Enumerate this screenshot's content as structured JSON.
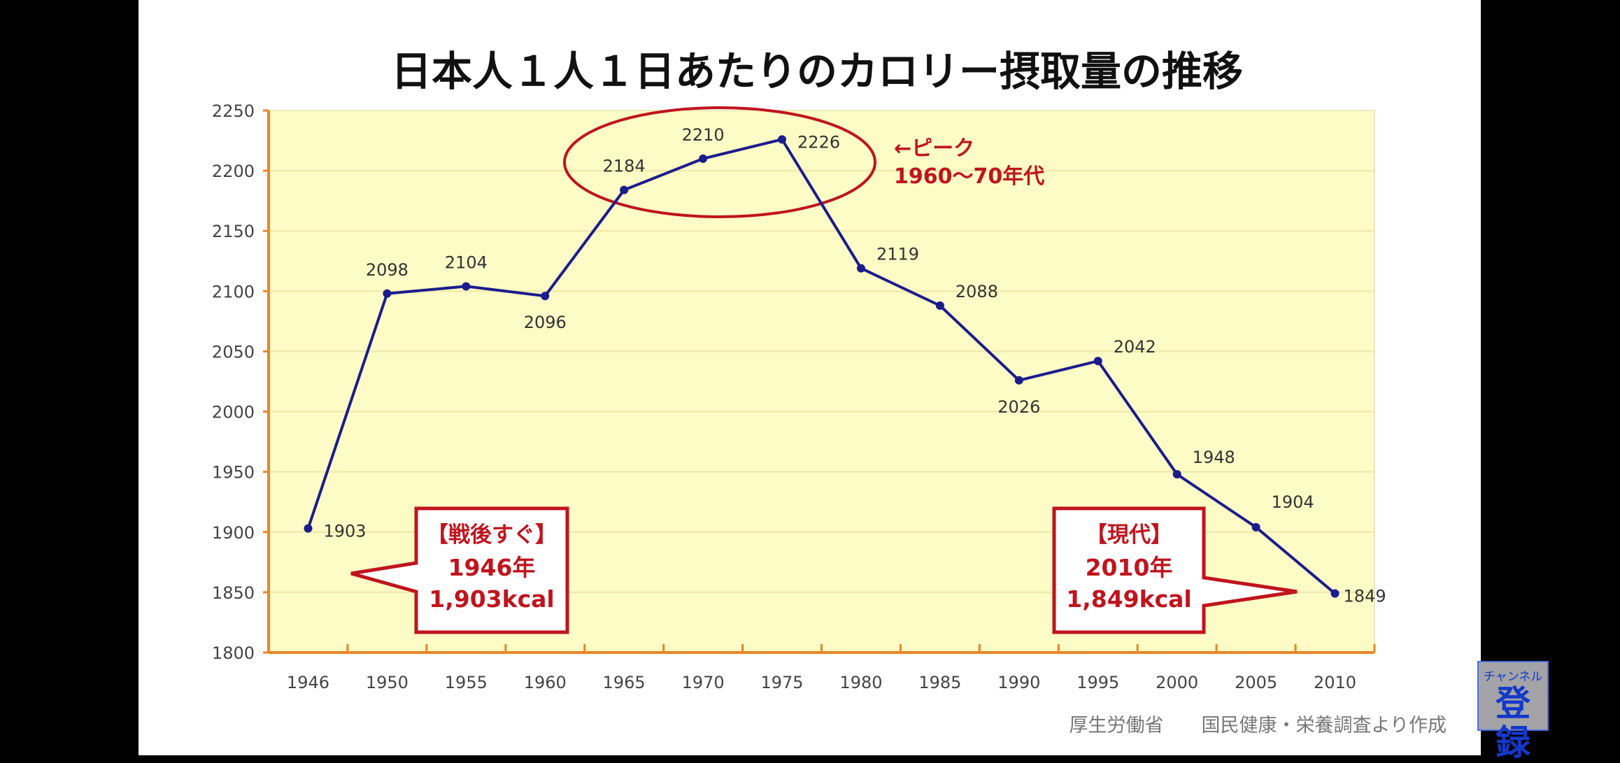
{
  "chart_data": {
    "type": "line",
    "title": "日本人１人１日あたりのカロリー摂取量の推移",
    "categories": [
      "1946",
      "1950",
      "1955",
      "1960",
      "1965",
      "1970",
      "1975",
      "1980",
      "1985",
      "1990",
      "1995",
      "2000",
      "2005",
      "2010"
    ],
    "values": [
      1903,
      2098,
      2104,
      2096,
      2184,
      2210,
      2226,
      2119,
      2088,
      2026,
      2042,
      1948,
      1904,
      1849
    ],
    "value_labels": [
      "1903",
      "2098",
      "2104",
      "2096",
      "2184",
      "2210",
      "2226",
      "2119",
      "2088",
      "2026",
      "2042",
      "1948",
      "1904",
      "1849"
    ],
    "ylim": [
      1800,
      2250
    ],
    "yticks": [
      "1800",
      "1850",
      "1900",
      "1950",
      "2000",
      "2050",
      "2100",
      "2150",
      "2200",
      "2250"
    ],
    "grid": true,
    "xlabel": "",
    "ylabel": "",
    "annotations": {
      "peak_line1": "←ピーク",
      "peak_line2": "1960～70年代",
      "postwar": [
        "【戦後すぐ】",
        "1946年",
        "1,903kcal"
      ],
      "modern": [
        "【現代】",
        "2010年",
        "1,849kcal"
      ]
    },
    "source": "厚生労働省　　国民健康・栄養調査より作成",
    "colors": {
      "line": "#1c1c8c",
      "plot_bg": "#fdfbc6",
      "axis": "#e8862a",
      "accent": "#c0141e"
    }
  },
  "subscribe": {
    "line1": "チャンネル",
    "line2": "登録"
  }
}
